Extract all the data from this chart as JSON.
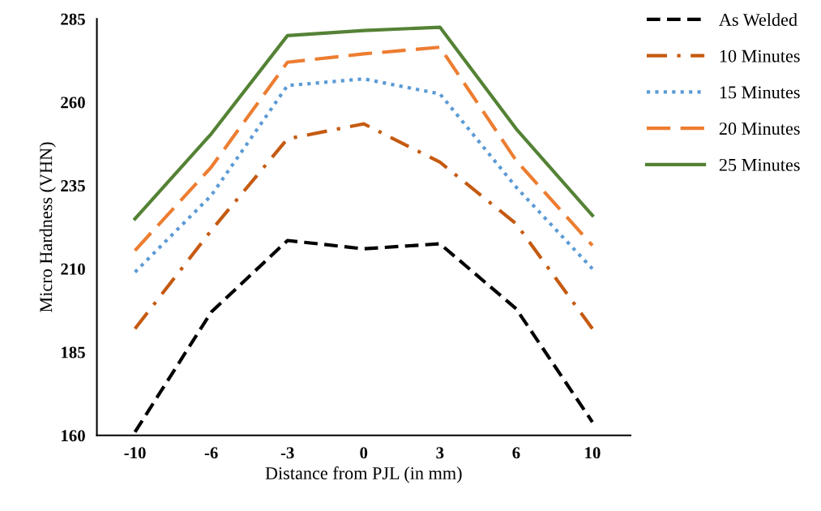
{
  "chart_data": {
    "type": "line",
    "xlabel": "Distance from PJL (in mm)",
    "ylabel": "Micro Hardness (VHN)",
    "categories": [
      "-10",
      "-6",
      "-3",
      "0",
      "3",
      "6",
      "10"
    ],
    "ylim": [
      160,
      285
    ],
    "yticks": [
      160,
      185,
      210,
      235,
      260,
      285
    ],
    "grid": false,
    "legend": "right",
    "marker": "none",
    "series": [
      {
        "name": "As Welded",
        "color": "#000000",
        "line_style": "dashed",
        "values": [
          161,
          197,
          218.5,
          216,
          217.5,
          198,
          164
        ]
      },
      {
        "name": "10 Minutes",
        "color": "#c55a11",
        "line_style": "dashdot",
        "values": [
          192,
          221.5,
          249,
          253.5,
          242,
          223.5,
          192
        ]
      },
      {
        "name": "15 Minutes",
        "color": "#5b9bd5",
        "line_style": "dotted",
        "values": [
          209,
          232,
          265,
          267,
          262.5,
          234.5,
          210
        ]
      },
      {
        "name": "20 Minutes",
        "color": "#ed7d31",
        "line_style": "dashed",
        "values": [
          215.5,
          240.5,
          272,
          274.5,
          276.5,
          242.5,
          217
        ]
      },
      {
        "name": "25 Minutes",
        "color": "#548235",
        "line_style": "solid",
        "values": [
          225,
          250.5,
          280,
          281.5,
          282.5,
          252,
          226
        ]
      }
    ]
  }
}
